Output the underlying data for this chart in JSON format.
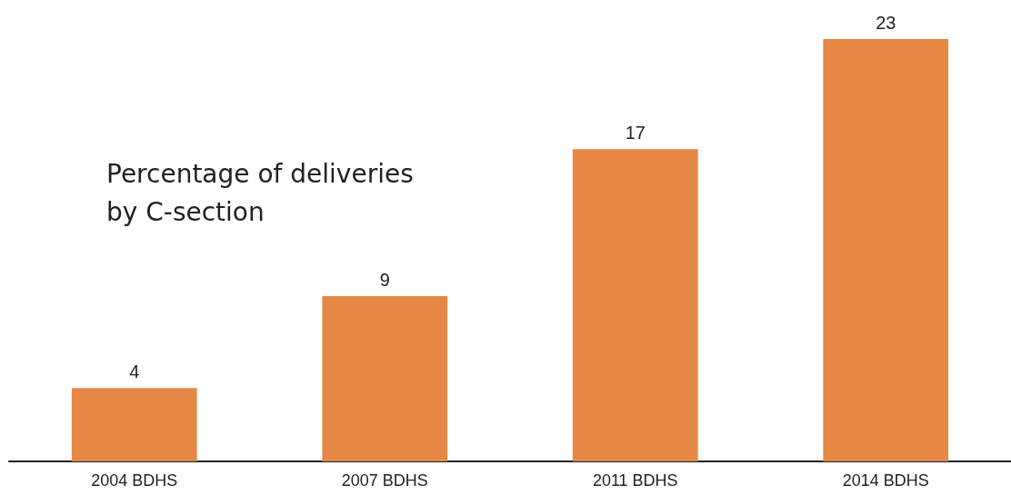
{
  "chart_data": {
    "type": "bar",
    "title": "Percentage of deliveries by C-section",
    "categories": [
      "2004 BDHS",
      "2007 BDHS",
      "2011 BDHS",
      "2014 BDHS"
    ],
    "values": [
      4,
      9,
      17,
      23
    ],
    "color": "#e58745",
    "data_labels": true
  }
}
